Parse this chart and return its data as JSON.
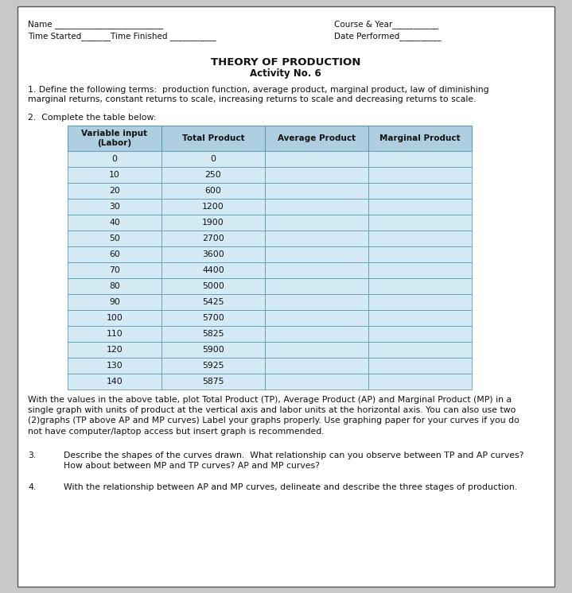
{
  "bg_color": "#c8c8c8",
  "page_bg": "#ffffff",
  "page_border": "#555555",
  "title": "THEORY OF PRODUCTION",
  "subtitle": "Activity No. 6",
  "header_left_line1": "Name __________________________",
  "header_left_line2": "Time Started_______Time Finished ___________",
  "header_right_line1": "Course & Year___________",
  "header_right_line2": "Date Performed__________",
  "item1_text": "1. Define the following terms:  production function, average product, marginal product, law of diminishing\nmarginal returns, constant returns to scale, increasing returns to scale and decreasing returns to scale.",
  "item2_text": "2.  Complete the table below:",
  "col_headers": [
    "Variable input\n(Labor)",
    "Total Product",
    "Average Product",
    "Marginal Product"
  ],
  "table_data": [
    [
      "0",
      "0",
      "",
      ""
    ],
    [
      "10",
      "250",
      "",
      ""
    ],
    [
      "20",
      "600",
      "",
      ""
    ],
    [
      "30",
      "1200",
      "",
      ""
    ],
    [
      "40",
      "1900",
      "",
      ""
    ],
    [
      "50",
      "2700",
      "",
      ""
    ],
    [
      "60",
      "3600",
      "",
      ""
    ],
    [
      "70",
      "4400",
      "",
      ""
    ],
    [
      "80",
      "5000",
      "",
      ""
    ],
    [
      "90",
      "5425",
      "",
      ""
    ],
    [
      "100",
      "5700",
      "",
      ""
    ],
    [
      "110",
      "5825",
      "",
      ""
    ],
    [
      "120",
      "5900",
      "",
      ""
    ],
    [
      "130",
      "5925",
      "",
      ""
    ],
    [
      "140",
      "5875",
      "",
      ""
    ]
  ],
  "table_header_bg": "#aecfe0",
  "table_row_bg": "#d4eaf5",
  "table_border_color": "#5a9db8",
  "item3_text": "With the values in the above table, plot Total Product (TP), Average Product (AP) and Marginal Product (MP) in a\nsingle graph with units of product at the vertical axis and labor units at the horizontal axis. You can also use two\n(2)graphs (TP above AP and MP curves) Label your graphs properly. Use graphing paper for your curves if you do\nnot have computer/laptop access but insert graph is recommended.",
  "q3_label": "3.",
  "q3_text": "Describe the shapes of the curves drawn.  What relationship can you observe between TP and AP curves?\nHow about between MP and TP curves? AP and MP curves?",
  "q4_label": "4.",
  "q4_text": "With the relationship between AP and MP curves, delineate and describe the three stages of production."
}
